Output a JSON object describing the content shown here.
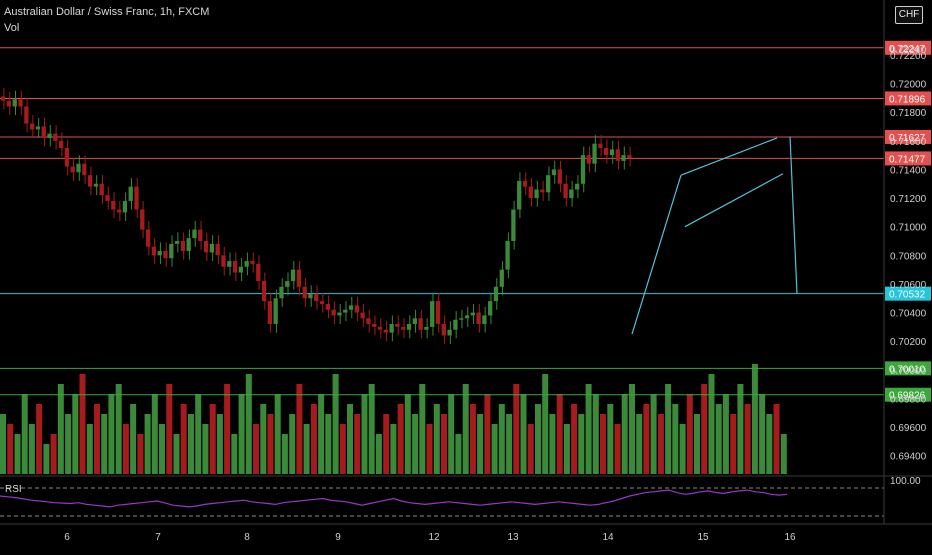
{
  "header": {
    "symbol_title": "Australian Dollar / Swiss Franc, 1h, FXCM",
    "volume_label": "Vol",
    "currency_badge": "CHF",
    "rsi_label": "RSI"
  },
  "colors": {
    "background": "#000000",
    "up_candle": "#3a8a3a",
    "down_candle": "#a61c1c",
    "resistance_line": "#e2514f",
    "support_line": "#26c6da",
    "volume_level_line": "#6fd36f",
    "pattern_line": "#4fc3d7",
    "rsi_line": "#9a35c8",
    "axis_text": "#cfcfcf"
  },
  "chart_data": {
    "type": "candlestick",
    "price_axis": {
      "ylim": [
        0.693,
        0.725
      ],
      "tick_labels": [
        "0.72240",
        "0.72200",
        "0.72000",
        "0.71800",
        "0.71600",
        "0.71400",
        "0.71200",
        "0.71000",
        "0.70800",
        "0.70600",
        "0.70400",
        "0.70200",
        "0.70000",
        "0.69800",
        "0.69600",
        "0.69400"
      ],
      "rsi_tick_label": "100.00"
    },
    "x_axis": {
      "tick_labels": [
        "6",
        "7",
        "8",
        "9",
        "12",
        "13",
        "14",
        "15",
        "16"
      ]
    },
    "horizontal_levels": [
      {
        "value": 0.7225,
        "label": "0.72247",
        "color": "#e2514f"
      },
      {
        "value": 0.71896,
        "label": "0.71896",
        "color": "#e2514f"
      },
      {
        "value": 0.71627,
        "label": "0.71627",
        "color": "#e2514f"
      },
      {
        "value": 0.71477,
        "label": "0.71477",
        "color": "#e2514f"
      },
      {
        "value": 0.70532,
        "label": "0.70532",
        "color": "#26c6da"
      },
      {
        "value": 0.7001,
        "label": "0.70010",
        "color": "#3aa83a"
      },
      {
        "value": 0.69826,
        "label": "0.69826",
        "color": "#3aa83a"
      }
    ],
    "close_series": [
      0.7188,
      0.7184,
      0.7189,
      0.7184,
      0.7172,
      0.7168,
      0.717,
      0.7162,
      0.7165,
      0.716,
      0.7155,
      0.7142,
      0.7138,
      0.7144,
      0.7136,
      0.7128,
      0.713,
      0.7122,
      0.7118,
      0.7112,
      0.711,
      0.7118,
      0.7128,
      0.7112,
      0.7098,
      0.7086,
      0.708,
      0.7083,
      0.7078,
      0.7088,
      0.709,
      0.7083,
      0.7092,
      0.7098,
      0.709,
      0.7082,
      0.7088,
      0.708,
      0.7072,
      0.7076,
      0.7068,
      0.7072,
      0.7076,
      0.7074,
      0.7062,
      0.7048,
      0.7032,
      0.705,
      0.7058,
      0.7062,
      0.707,
      0.7058,
      0.705,
      0.7053,
      0.7048,
      0.7046,
      0.7042,
      0.7038,
      0.704,
      0.7042,
      0.7045,
      0.704,
      0.7036,
      0.7032,
      0.703,
      0.7028,
      0.7026,
      0.7032,
      0.703,
      0.7028,
      0.7032,
      0.7036,
      0.7028,
      0.703,
      0.7048,
      0.7032,
      0.7024,
      0.7028,
      0.7035,
      0.7036,
      0.7038,
      0.704,
      0.7032,
      0.7038,
      0.7048,
      0.7058,
      0.707,
      0.709,
      0.7112,
      0.7132,
      0.7128,
      0.712,
      0.7126,
      0.7124,
      0.7136,
      0.714,
      0.713,
      0.712,
      0.7126,
      0.713,
      0.715,
      0.7144,
      0.7158,
      0.7155,
      0.715,
      0.7154,
      0.7146,
      0.715,
      0.7148
    ],
    "pattern": {
      "type": "bull flag",
      "flagpole": [
        [
          0.7025,
          0.7136
        ]
      ],
      "projected_target": 0.70532
    },
    "volume_series": [
      6,
      5,
      4,
      8,
      5,
      7,
      3,
      4,
      9,
      6,
      8,
      10,
      5,
      7,
      6,
      8,
      9,
      5,
      7,
      4,
      6,
      8,
      5,
      9,
      4,
      7,
      6,
      8,
      5,
      7,
      6,
      9,
      4,
      8,
      10,
      5,
      7,
      6,
      8,
      4,
      6,
      9,
      5,
      7,
      8,
      6,
      10,
      5,
      7,
      6,
      8,
      9,
      4,
      6,
      5,
      7,
      8,
      6,
      9,
      5,
      7,
      6,
      8,
      4,
      9,
      7,
      6,
      8,
      5,
      7,
      6,
      9,
      8,
      5,
      7,
      10,
      6,
      8,
      5,
      7,
      6,
      9,
      8,
      6,
      7,
      5,
      8,
      9,
      6,
      7,
      8,
      6,
      9,
      7,
      5,
      8,
      6,
      9,
      10,
      7,
      8,
      6,
      9,
      7,
      11,
      8,
      6,
      7,
      4
    ],
    "rsi_series": [
      62,
      60,
      58,
      55,
      52,
      50,
      48,
      46,
      45,
      44,
      46,
      42,
      40,
      38,
      36,
      40,
      42,
      44,
      46,
      48,
      50,
      45,
      40,
      38,
      36,
      38,
      42,
      44,
      46,
      48,
      50,
      52,
      48,
      46,
      44,
      42,
      46,
      48,
      50,
      52,
      54,
      56,
      52,
      50,
      48,
      44,
      40,
      44,
      48,
      52,
      56,
      50,
      46,
      44,
      42,
      44,
      46,
      48,
      46,
      44,
      42,
      40,
      42,
      44,
      46,
      48,
      46,
      44,
      42,
      44,
      46,
      48,
      46,
      44,
      42,
      40,
      42,
      46,
      50,
      56,
      62,
      66,
      70,
      72,
      74,
      76,
      70,
      66,
      68,
      72,
      74,
      70,
      68,
      72,
      74,
      76,
      72,
      70,
      66,
      64,
      66
    ]
  }
}
